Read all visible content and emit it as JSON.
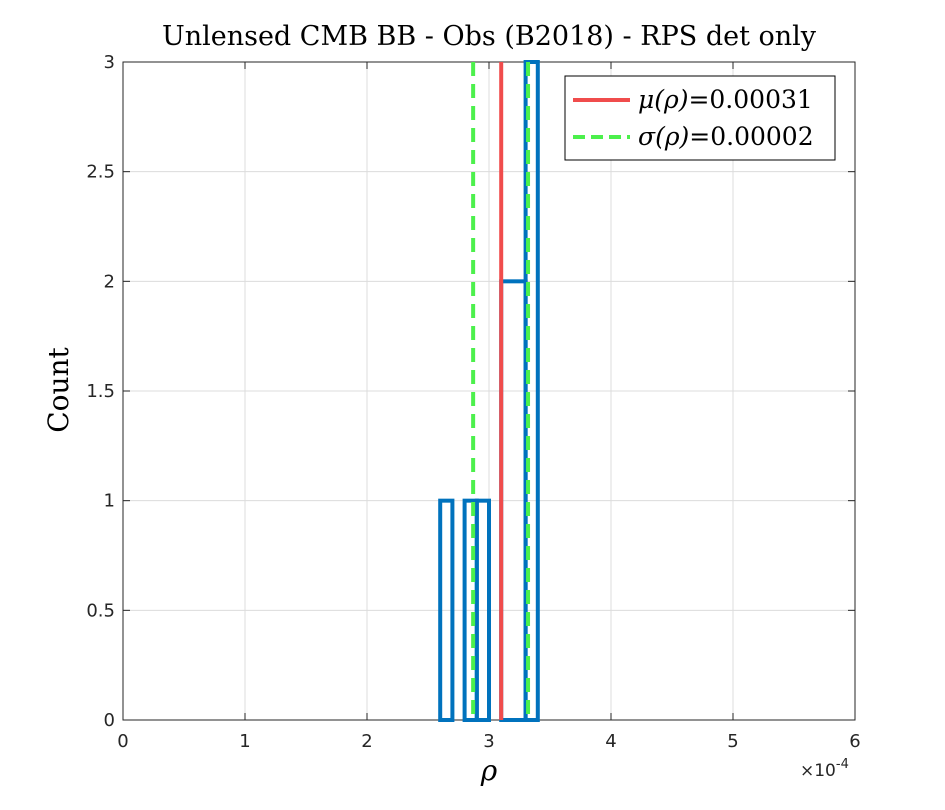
{
  "chart_data": {
    "type": "histogram",
    "title": "Unlensed CMB BB - Obs (B2018) - RPS det only",
    "xlabel": "ρ",
    "ylabel": "Count",
    "x_exponent_label": "×10",
    "x_exponent_power": "-4",
    "xlim": [
      0,
      6
    ],
    "ylim": [
      0,
      3
    ],
    "x_ticks": [
      "0",
      "1",
      "2",
      "3",
      "4",
      "5",
      "6"
    ],
    "y_ticks": [
      "0",
      "0.5",
      "1",
      "1.5",
      "2",
      "2.5",
      "3"
    ],
    "grid": true,
    "histogram": {
      "bin_edges": [
        0,
        2.6,
        2.7,
        2.8,
        2.9,
        3.0,
        3.1,
        3.3,
        3.4,
        6
      ],
      "counts": [
        0,
        1,
        0,
        1,
        1,
        0,
        2,
        3,
        0
      ],
      "color": "#0072BD"
    },
    "mean_line": {
      "x": 3.1,
      "color": "#F04C4C",
      "style": "solid"
    },
    "sigma_lines": {
      "x": [
        2.87,
        3.32
      ],
      "color": "#4CF04C",
      "style": "dashed"
    },
    "legend": {
      "placement": "top-right",
      "entries": [
        {
          "label_symbol": "μ(ρ)",
          "label_value": "=0.00031",
          "color": "#F04C4C",
          "style": "solid"
        },
        {
          "label_symbol": "σ(ρ)",
          "label_value": "=0.00002",
          "color": "#4CF04C",
          "style": "dashed"
        }
      ]
    }
  }
}
